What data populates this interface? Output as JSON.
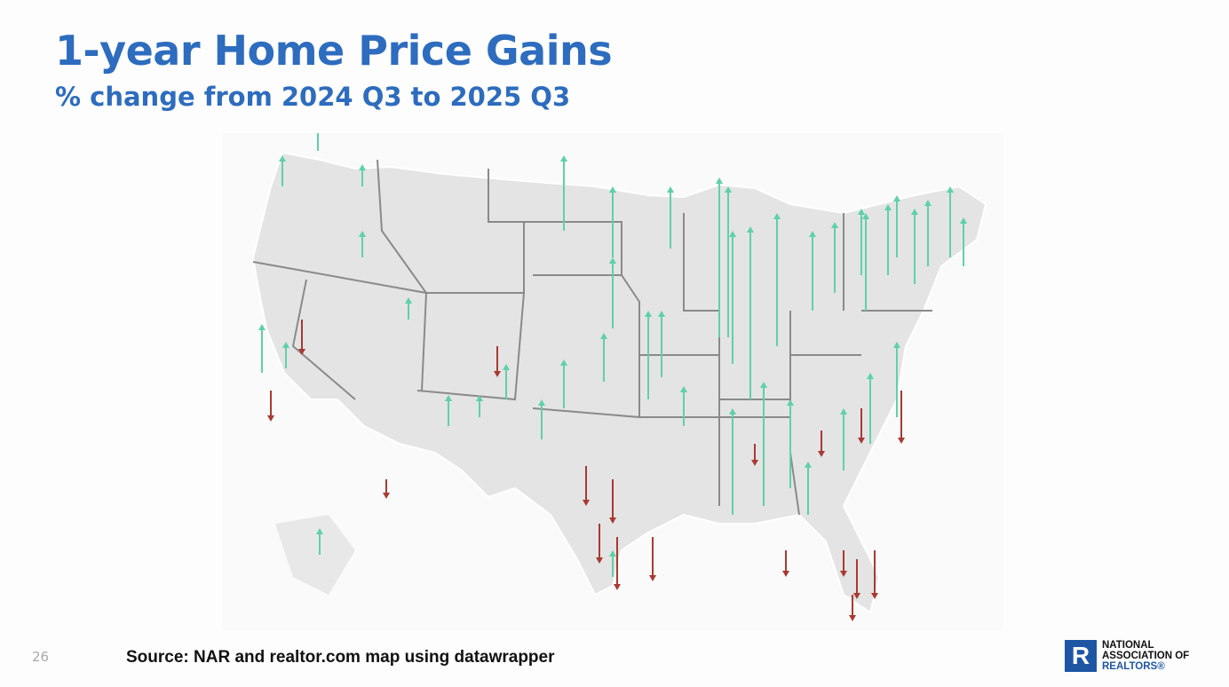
{
  "header": {
    "title": "1-year Home Price Gains",
    "subtitle": "% change from 2024 Q3 to 2025 Q3"
  },
  "footer": {
    "page_number": "26",
    "source": "Source: NAR and realtor.com map using datawrapper"
  },
  "logo": {
    "lines": [
      "NATIONAL",
      "ASSOCIATION OF",
      "REALTORS®"
    ]
  }
}
